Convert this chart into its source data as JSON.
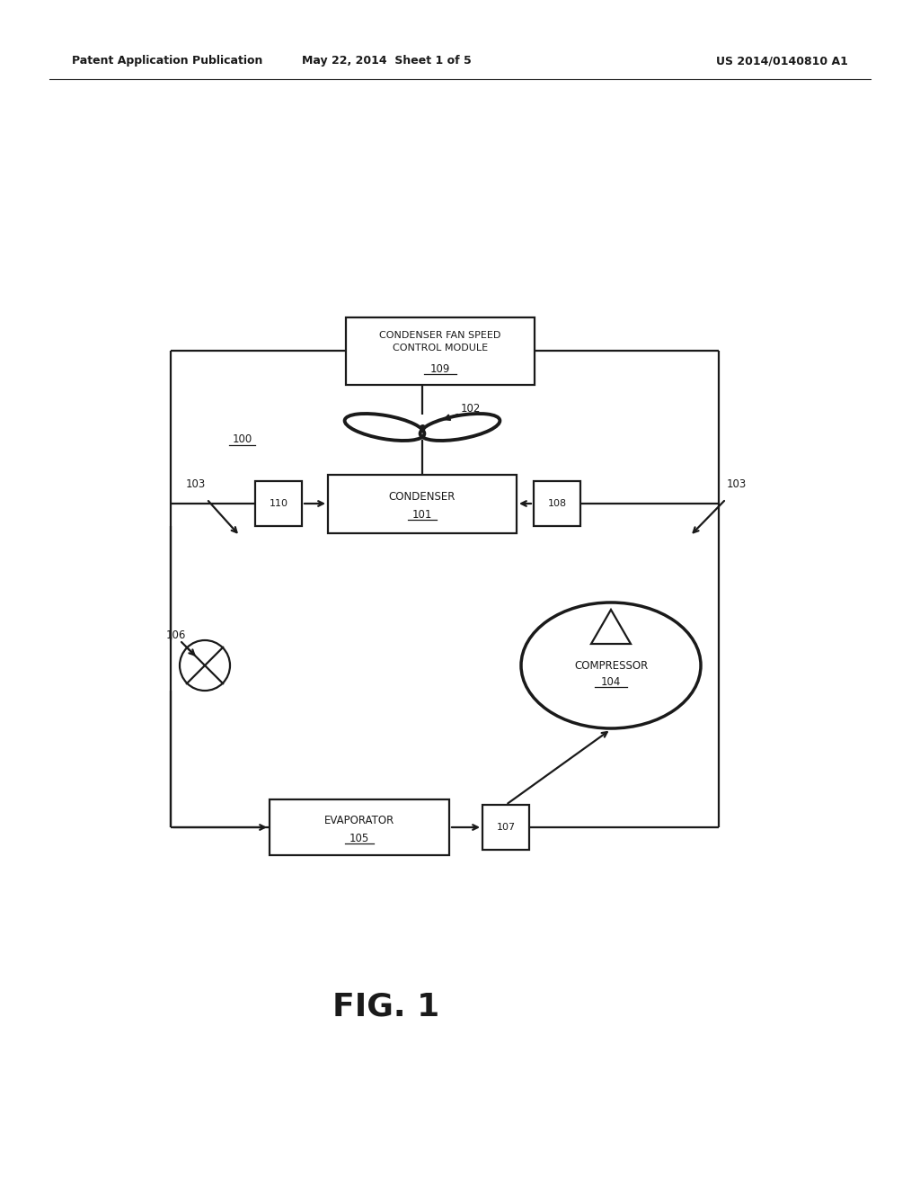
{
  "bg_color": "#ffffff",
  "header_left": "Patent Application Publication",
  "header_mid": "May 22, 2014  Sheet 1 of 5",
  "header_right": "US 2014/0140810 A1",
  "fig_label": "FIG. 1"
}
